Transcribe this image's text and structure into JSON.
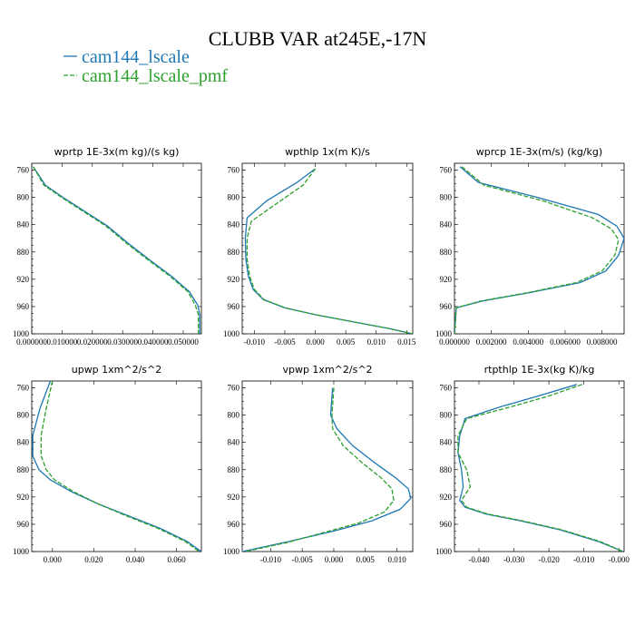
{
  "title": "CLUBB VAR at245E,-17N",
  "colors": {
    "lscale": "#1f77b4",
    "lscale_pmf": "#2ca02c"
  },
  "legend": [
    {
      "name": "cam144_lscale",
      "color": "#1f77b4",
      "dash": ""
    },
    {
      "name": "cam144_lscale_pmf",
      "color": "#2ca02c",
      "dash": "5,2"
    }
  ],
  "chart_data": [
    {
      "type": "line",
      "title": "wprtp   1E-3x(m kg)/(s kg)",
      "xlim": [
        0.0,
        0.056
      ],
      "ylim": [
        1000,
        750
      ],
      "grid": false,
      "x_ticks": [
        0.0,
        0.01,
        0.02,
        0.03,
        0.04,
        0.05
      ],
      "x_tick_labels": [
        "0.000000",
        "0.010000",
        "0.020000",
        "0.030000",
        "0.040000",
        "0.050000"
      ],
      "y_ticks": [
        760,
        800,
        840,
        880,
        920,
        960,
        1000
      ],
      "y_tick_labels": [
        "760",
        "800",
        "840",
        "880",
        "920",
        "960",
        "1000"
      ],
      "series": [
        {
          "name": "cam144_lscale",
          "x": [
            0.0005,
            0.0045,
            0.011,
            0.018,
            0.025,
            0.032,
            0.039,
            0.046,
            0.052,
            0.0548,
            0.0555,
            0.0555,
            0.0555
          ],
          "y": [
            755,
            782,
            802,
            822,
            842,
            868,
            892,
            915,
            938,
            958,
            972,
            990,
            1000
          ]
        },
        {
          "name": "cam144_lscale_pmf",
          "x": [
            0.0005,
            0.004,
            0.0105,
            0.0175,
            0.0245,
            0.0315,
            0.0385,
            0.0455,
            0.0515,
            0.054,
            0.055,
            0.055,
            0.055
          ],
          "y": [
            755,
            782,
            802,
            822,
            842,
            868,
            892,
            915,
            938,
            958,
            972,
            990,
            1000
          ]
        }
      ]
    },
    {
      "type": "line",
      "title": "wpthlp   1x(m K)/s",
      "xlim": [
        -0.012,
        0.016
      ],
      "ylim": [
        1000,
        750
      ],
      "grid": false,
      "x_ticks": [
        -0.01,
        -0.005,
        0.0,
        0.005,
        0.01,
        0.015
      ],
      "x_tick_labels": [
        "-0.010",
        "-0.005",
        "0.000",
        "0.005",
        "0.010",
        "0.015"
      ],
      "y_ticks": [
        760,
        800,
        840,
        880,
        920,
        960,
        1000
      ],
      "y_tick_labels": [
        "760",
        "800",
        "840",
        "880",
        "920",
        "960",
        "1000"
      ],
      "series": [
        {
          "name": "cam144_lscale",
          "x": [
            0.0,
            -0.003,
            -0.008,
            -0.0112,
            -0.0115,
            -0.0114,
            -0.011,
            -0.0102,
            -0.0085,
            -0.005,
            0.0,
            0.006,
            0.012,
            0.016
          ],
          "y": [
            758,
            778,
            805,
            830,
            860,
            890,
            915,
            935,
            950,
            962,
            972,
            982,
            992,
            1000
          ]
        },
        {
          "name": "cam144_lscale_pmf",
          "x": [
            0.0,
            -0.002,
            -0.0065,
            -0.0105,
            -0.0112,
            -0.0112,
            -0.0108,
            -0.01,
            -0.0084,
            -0.0049,
            0.0,
            0.006,
            0.012,
            0.016
          ],
          "y": [
            758,
            782,
            810,
            835,
            860,
            890,
            915,
            935,
            950,
            962,
            972,
            982,
            992,
            1000
          ]
        }
      ]
    },
    {
      "type": "line",
      "title": "wprcp   1E-3x(m/s) (kg/kg)",
      "xlim": [
        0.0,
        0.0092
      ],
      "ylim": [
        1000,
        750
      ],
      "grid": false,
      "x_ticks": [
        0.0,
        0.002,
        0.004,
        0.006,
        0.008
      ],
      "x_tick_labels": [
        "0.000000",
        "0.002000",
        "0.004000",
        "0.006000",
        "0.008000"
      ],
      "y_ticks": [
        760,
        800,
        840,
        880,
        920,
        960,
        1000
      ],
      "y_tick_labels": [
        "760",
        "800",
        "840",
        "880",
        "920",
        "960",
        "1000"
      ],
      "series": [
        {
          "name": "cam144_lscale",
          "x": [
            0.0003,
            0.0013,
            0.0045,
            0.0078,
            0.0088,
            0.0092,
            0.0089,
            0.0082,
            0.0068,
            0.004,
            0.0015,
            0.0001,
            0.0
          ],
          "y": [
            755,
            778,
            800,
            825,
            842,
            860,
            885,
            908,
            925,
            940,
            952,
            962,
            1000
          ]
        },
        {
          "name": "cam144_lscale_pmf",
          "x": [
            0.0004,
            0.0016,
            0.0048,
            0.0075,
            0.0085,
            0.0089,
            0.0087,
            0.008,
            0.0066,
            0.0039,
            0.0014,
            0.0001,
            0.0
          ],
          "y": [
            755,
            782,
            805,
            830,
            846,
            862,
            885,
            908,
            925,
            940,
            952,
            962,
            1000
          ]
        }
      ]
    },
    {
      "type": "line",
      "title": "upwp   1xm^2/s^2",
      "xlim": [
        -0.01,
        0.072
      ],
      "ylim": [
        1000,
        750
      ],
      "grid": false,
      "x_ticks": [
        0.0,
        0.02,
        0.04,
        0.06
      ],
      "x_tick_labels": [
        "0.000",
        "0.020",
        "0.040",
        "0.060"
      ],
      "y_ticks": [
        760,
        800,
        840,
        880,
        920,
        960,
        1000
      ],
      "y_tick_labels": [
        "760",
        "800",
        "840",
        "880",
        "920",
        "960",
        "1000"
      ],
      "series": [
        {
          "name": "cam144_lscale",
          "x": [
            -0.001,
            -0.006,
            -0.0095,
            -0.0095,
            -0.0065,
            -0.001,
            0.009,
            0.022,
            0.037,
            0.052,
            0.065,
            0.072
          ],
          "y": [
            750,
            790,
            830,
            860,
            880,
            895,
            912,
            930,
            948,
            966,
            985,
            1000
          ]
        },
        {
          "name": "cam144_lscale_pmf",
          "x": [
            0.0,
            -0.003,
            -0.0055,
            -0.0055,
            -0.003,
            0.001,
            0.01,
            0.022,
            0.036,
            0.051,
            0.064,
            0.071
          ],
          "y": [
            750,
            790,
            830,
            860,
            880,
            895,
            912,
            930,
            948,
            966,
            985,
            1000
          ]
        }
      ]
    },
    {
      "type": "line",
      "title": "vpwp   1xm^2/s^2",
      "xlim": [
        -0.0145,
        0.0125
      ],
      "ylim": [
        1000,
        750
      ],
      "grid": false,
      "x_ticks": [
        -0.01,
        -0.005,
        0.0,
        0.005,
        0.01
      ],
      "x_tick_labels": [
        "-0.010",
        "-0.005",
        "0.000",
        "0.005",
        "0.010"
      ],
      "y_ticks": [
        760,
        800,
        840,
        880,
        920,
        960,
        1000
      ],
      "y_tick_labels": [
        "760",
        "800",
        "840",
        "880",
        "920",
        "960",
        "1000"
      ],
      "series": [
        {
          "name": "cam144_lscale",
          "x": [
            -0.0002,
            -0.0005,
            0.0005,
            0.003,
            0.0065,
            0.0098,
            0.0118,
            0.0122,
            0.0105,
            0.006,
            0.0,
            -0.007,
            -0.0145
          ],
          "y": [
            760,
            800,
            820,
            845,
            870,
            892,
            908,
            922,
            938,
            955,
            970,
            985,
            1000
          ]
        },
        {
          "name": "cam144_lscale_pmf",
          "x": [
            0.0,
            -0.0003,
            -0.0002,
            0.0015,
            0.0045,
            0.0075,
            0.0092,
            0.0095,
            0.008,
            0.004,
            -0.0015,
            -0.0075,
            -0.014
          ],
          "y": [
            760,
            800,
            820,
            845,
            870,
            892,
            908,
            925,
            942,
            958,
            972,
            987,
            1000
          ]
        }
      ]
    },
    {
      "type": "line",
      "title": "rtpthlp   1E-3x(kg K)/kg",
      "xlim": [
        -0.047,
        0.0015
      ],
      "ylim": [
        1000,
        750
      ],
      "grid": false,
      "x_ticks": [
        -0.04,
        -0.03,
        -0.02,
        -0.01,
        0.0
      ],
      "x_tick_labels": [
        "-0.040",
        "-0.030",
        "-0.020",
        "-0.010",
        "-0.000"
      ],
      "y_ticks": [
        760,
        800,
        840,
        880,
        920,
        960,
        1000
      ],
      "y_tick_labels": [
        "760",
        "800",
        "840",
        "880",
        "920",
        "960",
        "1000"
      ],
      "series": [
        {
          "name": "cam144_lscale",
          "x": [
            -0.012,
            -0.023,
            -0.034,
            -0.044,
            -0.0455,
            -0.046,
            -0.045,
            -0.0445,
            -0.0455,
            -0.044,
            -0.038,
            -0.028,
            -0.017,
            -0.006,
            0.0012
          ],
          "y": [
            755,
            772,
            788,
            805,
            830,
            855,
            880,
            905,
            925,
            935,
            945,
            955,
            968,
            985,
            1000
          ]
        },
        {
          "name": "cam144_lscale_pmf",
          "x": [
            -0.0105,
            -0.02,
            -0.031,
            -0.0435,
            -0.046,
            -0.046,
            -0.0435,
            -0.0425,
            -0.045,
            -0.0435,
            -0.0375,
            -0.0275,
            -0.0165,
            -0.0055,
            0.0012
          ],
          "y": [
            755,
            772,
            788,
            805,
            830,
            855,
            880,
            905,
            925,
            935,
            945,
            955,
            968,
            985,
            1000
          ]
        }
      ]
    }
  ]
}
